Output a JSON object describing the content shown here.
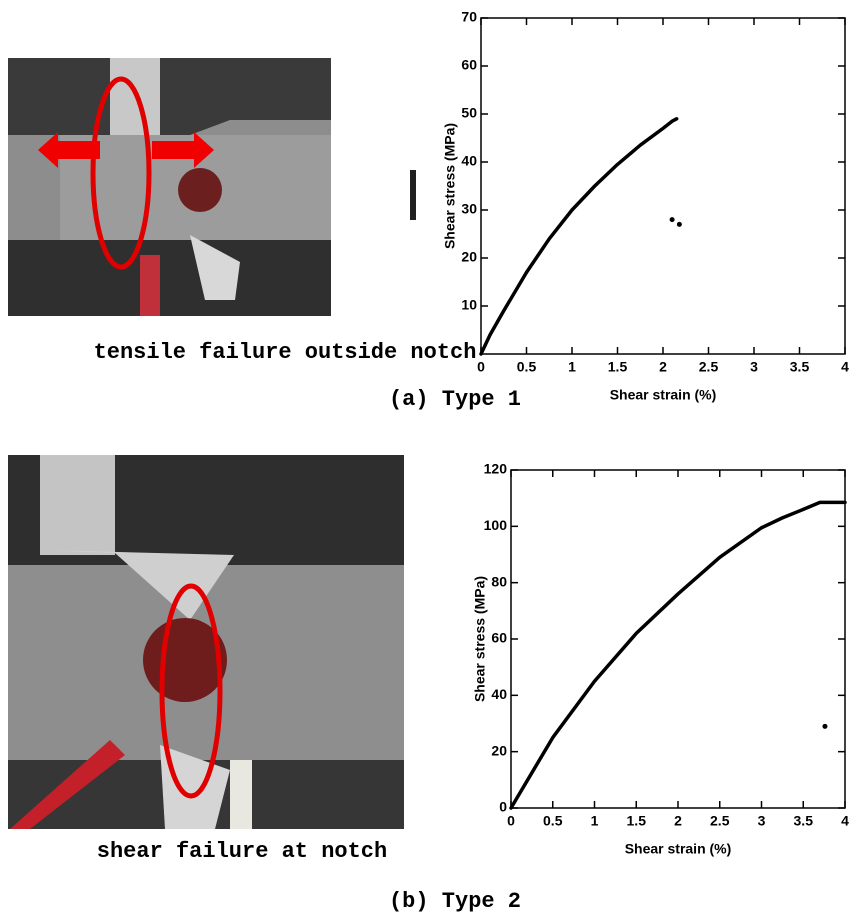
{
  "panels": [
    {
      "photo_caption": "tensile failure outside notch",
      "label": "(a) Type 1"
    },
    {
      "photo_caption": "shear failure at notch",
      "label": "(b) Type 2"
    }
  ],
  "chart_data": [
    {
      "type": "line",
      "x_label": "Shear strain (%)",
      "y_label": "Shear stress (MPa)",
      "xlim": [
        0,
        4
      ],
      "ylim": [
        0,
        70
      ],
      "xticks": [
        0,
        0.5,
        1,
        1.5,
        2,
        2.5,
        3,
        3.5,
        4
      ],
      "yticks": [
        10,
        20,
        30,
        40,
        50,
        60,
        70
      ],
      "series": [
        {
          "color": "#000000",
          "x": [
            0,
            0.1,
            0.25,
            0.5,
            0.75,
            1,
            1.25,
            1.5,
            1.75,
            2,
            2.1,
            2.15
          ],
          "values": [
            0,
            4,
            9,
            17,
            24,
            30,
            35,
            39.5,
            43.5,
            47,
            48.5,
            49
          ]
        },
        {
          "color": "#000000",
          "marker": "dot",
          "x": [
            2.1,
            2.18
          ],
          "values": [
            28,
            27
          ]
        }
      ]
    },
    {
      "type": "line",
      "x_label": "Shear strain (%)",
      "y_label": "Shear stress (MPa)",
      "xlim": [
        0,
        4
      ],
      "ylim": [
        0,
        120
      ],
      "xticks": [
        0,
        0.5,
        1,
        1.5,
        2,
        2.5,
        3,
        3.5,
        4
      ],
      "yticks": [
        0,
        20,
        40,
        60,
        80,
        100,
        120
      ],
      "series": [
        {
          "color": "#000000",
          "x": [
            0,
            0.5,
            1,
            1.5,
            2,
            2.5,
            3,
            3.25,
            3.5,
            3.7,
            4
          ],
          "values": [
            0,
            25,
            45,
            62,
            76,
            89,
            99.5,
            103,
            106,
            108.5,
            108.5
          ]
        },
        {
          "color": "#000000",
          "marker": "dot",
          "x": [
            3.76
          ],
          "values": [
            29
          ]
        }
      ]
    }
  ]
}
